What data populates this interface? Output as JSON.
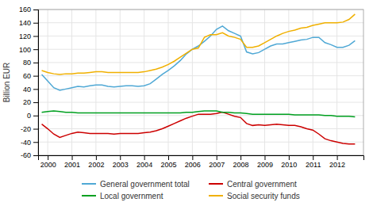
{
  "chart_data": {
    "type": "line",
    "ylabel": "Billion EUR",
    "x": [
      1999.75,
      2000.0,
      2000.25,
      2000.5,
      2000.75,
      2001.0,
      2001.25,
      2001.5,
      2001.75,
      2002.0,
      2002.25,
      2002.5,
      2002.75,
      2003.0,
      2003.25,
      2003.5,
      2003.75,
      2004.0,
      2004.25,
      2004.5,
      2004.75,
      2005.0,
      2005.25,
      2005.5,
      2005.75,
      2006.0,
      2006.25,
      2006.5,
      2006.75,
      2007.0,
      2007.25,
      2007.5,
      2007.75,
      2008.0,
      2008.25,
      2008.5,
      2008.75,
      2009.0,
      2009.25,
      2009.5,
      2009.75,
      2010.0,
      2010.25,
      2010.5,
      2010.75,
      2011.0,
      2011.25,
      2011.5,
      2011.75,
      2012.0,
      2012.25,
      2012.5,
      2012.75
    ],
    "series": [
      {
        "name": "General government total",
        "color": "#4fa8d5",
        "values": [
          62,
          52,
          42,
          38,
          40,
          42,
          44,
          43,
          45,
          46,
          46,
          44,
          43,
          44,
          45,
          45,
          44,
          45,
          48,
          55,
          62,
          68,
          75,
          83,
          93,
          100,
          105,
          112,
          120,
          130,
          135,
          128,
          124,
          120,
          96,
          93,
          95,
          100,
          105,
          108,
          108,
          110,
          112,
          114,
          115,
          118,
          118,
          110,
          107,
          103,
          103,
          106,
          113
        ]
      },
      {
        "name": "Central government",
        "color": "#cc0000",
        "values": [
          -13,
          -20,
          -28,
          -33,
          -30,
          -27,
          -25,
          -26,
          -27,
          -27,
          -27,
          -27,
          -28,
          -27,
          -27,
          -27,
          -27,
          -26,
          -25,
          -23,
          -20,
          -16,
          -12,
          -8,
          -4,
          -1,
          2,
          2,
          2,
          3,
          5,
          2,
          -1,
          -3,
          -12,
          -15,
          -14,
          -15,
          -14,
          -13,
          -14,
          -15,
          -15,
          -17,
          -20,
          -22,
          -28,
          -35,
          -38,
          -40,
          -42,
          -43,
          -43
        ]
      },
      {
        "name": "Local government",
        "color": "#00a020",
        "values": [
          5,
          6,
          7,
          6,
          5,
          5,
          4,
          4,
          4,
          4,
          4,
          4,
          4,
          4,
          4,
          4,
          4,
          4,
          4,
          4,
          4,
          4,
          4,
          4,
          5,
          5,
          6,
          7,
          7,
          7,
          5,
          5,
          4,
          4,
          3,
          2,
          2,
          2,
          2,
          2,
          2,
          2,
          1,
          1,
          1,
          1,
          1,
          0,
          0,
          -1,
          -1,
          -1,
          -2
        ]
      },
      {
        "name": "Social security funds",
        "color": "#f0b000",
        "values": [
          68,
          65,
          63,
          62,
          63,
          63,
          64,
          64,
          65,
          66,
          66,
          65,
          65,
          65,
          65,
          65,
          65,
          66,
          68,
          70,
          73,
          77,
          82,
          88,
          94,
          100,
          102,
          118,
          122,
          122,
          125,
          120,
          118,
          115,
          103,
          103,
          105,
          110,
          115,
          120,
          124,
          127,
          129,
          132,
          133,
          136,
          138,
          140,
          140,
          140,
          141,
          145,
          153
        ]
      }
    ],
    "xlim": [
      1999.6,
      2013.1
    ],
    "xticks": [
      2000,
      2001,
      2002,
      2003,
      2004,
      2005,
      2006,
      2007,
      2008,
      2009,
      2010,
      2011,
      2012
    ],
    "ylim": [
      -60,
      160
    ],
    "yticks": [
      -60,
      -40,
      -20,
      0,
      20,
      40,
      60,
      80,
      100,
      120,
      140,
      160
    ],
    "grid": true,
    "legend": "bottom"
  }
}
